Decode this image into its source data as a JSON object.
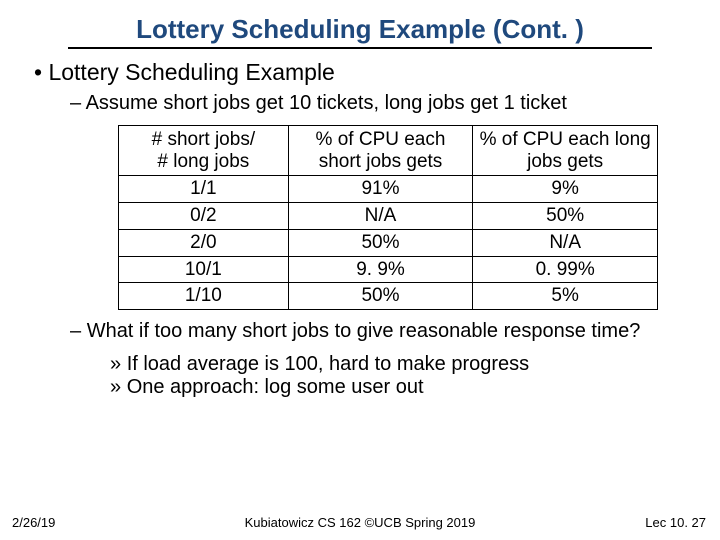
{
  "title": "Lottery Scheduling Example (Cont. )",
  "bullets": {
    "b1": "Lottery Scheduling Example",
    "b2a": "Assume short jobs get 10 tickets, long jobs get 1 ticket",
    "b2b": "What if too many short jobs to give reasonable response time?",
    "b3a": "If load average is 100, hard to make progress",
    "b3b": "One approach: log some user out"
  },
  "table": {
    "columns": [
      "# short jobs/\n# long jobs",
      "% of CPU each short jobs gets",
      "% of CPU each long jobs gets"
    ],
    "rows": [
      [
        "1/1",
        "91%",
        "9%"
      ],
      [
        "0/2",
        "N/A",
        "50%"
      ],
      [
        "2/0",
        "50%",
        "N/A"
      ],
      [
        "10/1",
        "9. 9%",
        "0. 99%"
      ],
      [
        "1/10",
        "50%",
        "5%"
      ]
    ],
    "border_color": "#000000",
    "text_fontsize": 19,
    "header_fontsize": 19
  },
  "footer": {
    "left": "2/26/19",
    "center": "Kubiatowicz CS 162 ©UCB Spring 2019",
    "right": "Lec 10. 27"
  },
  "colors": {
    "title": "#1f497d",
    "text": "#000000",
    "background": "#ffffff"
  }
}
